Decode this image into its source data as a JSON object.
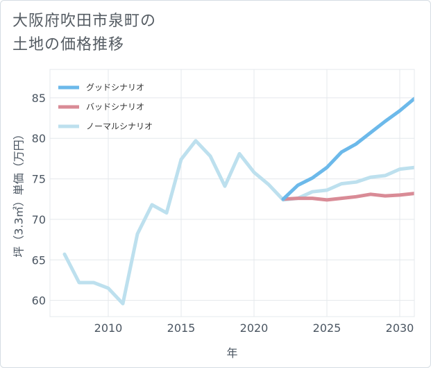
{
  "title_lines": [
    "大阪府吹田市泉町の",
    "土地の価格推移"
  ],
  "chart_data": {
    "type": "line",
    "xlabel": "年",
    "ylabel": "坪（3.3㎡）単価（万円）",
    "xlim": [
      2006,
      2031
    ],
    "ylim": [
      58,
      88.5
    ],
    "xticks": [
      2010,
      2015,
      2020,
      2025,
      2030
    ],
    "yticks": [
      60,
      65,
      70,
      75,
      80,
      85
    ],
    "grid": true,
    "legend_position": "top-left",
    "series": [
      {
        "name": "グッドシナリオ",
        "color": "#6cb9ea",
        "x": [
          2022,
          2023,
          2024,
          2025,
          2026,
          2027,
          2028,
          2029,
          2030,
          2031
        ],
        "y": [
          72.5,
          74.2,
          75.1,
          76.4,
          78.3,
          79.3,
          80.7,
          82.1,
          83.4,
          84.9
        ]
      },
      {
        "name": "バッドシナリオ",
        "color": "#d98b96",
        "x": [
          2022,
          2023,
          2024,
          2025,
          2026,
          2027,
          2028,
          2029,
          2030,
          2031
        ],
        "y": [
          72.5,
          72.6,
          72.6,
          72.4,
          72.6,
          72.8,
          73.1,
          72.9,
          73.0,
          73.2
        ]
      },
      {
        "name": "ノーマルシナリオ",
        "color": "#bde0ee",
        "x": [
          2007,
          2008,
          2009,
          2010,
          2011,
          2012,
          2013,
          2014,
          2015,
          2016,
          2017,
          2018,
          2019,
          2020,
          2021,
          2022,
          2023,
          2024,
          2025,
          2026,
          2027,
          2028,
          2029,
          2030,
          2031
        ],
        "y": [
          65.7,
          62.2,
          62.2,
          61.5,
          59.6,
          68.2,
          71.8,
          70.8,
          77.4,
          79.7,
          77.8,
          74.1,
          78.1,
          75.8,
          74.3,
          72.4,
          72.6,
          73.4,
          73.6,
          74.4,
          74.6,
          75.2,
          75.4,
          76.2,
          76.4
        ]
      }
    ]
  }
}
